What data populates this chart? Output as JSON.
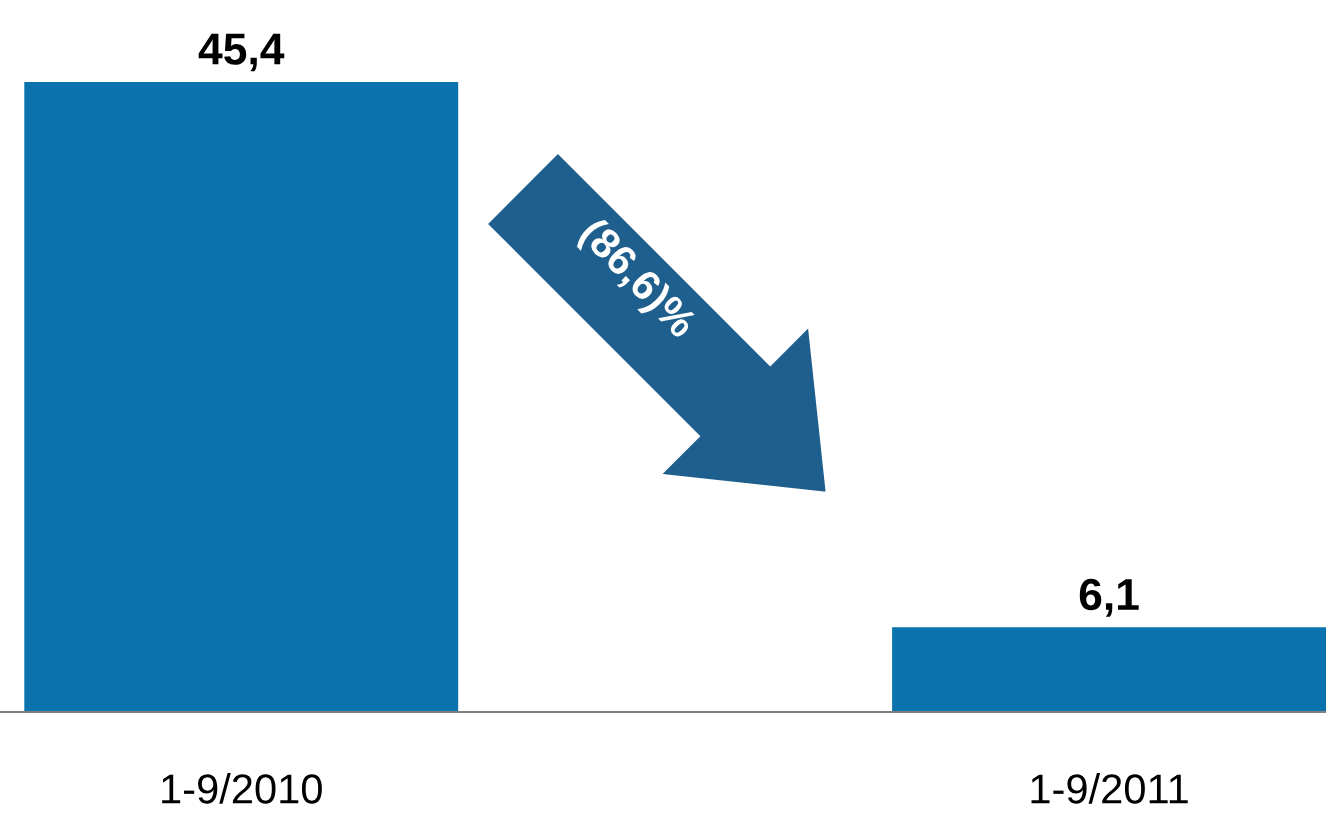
{
  "chart_data": {
    "type": "bar",
    "categories": [
      "1-9/2010",
      "1-9/2011"
    ],
    "values": [
      45.4,
      6.1
    ],
    "value_labels": [
      "45,4",
      "6,1"
    ],
    "color": "#0a72ad",
    "annotations": [
      "(86,6)%"
    ]
  }
}
